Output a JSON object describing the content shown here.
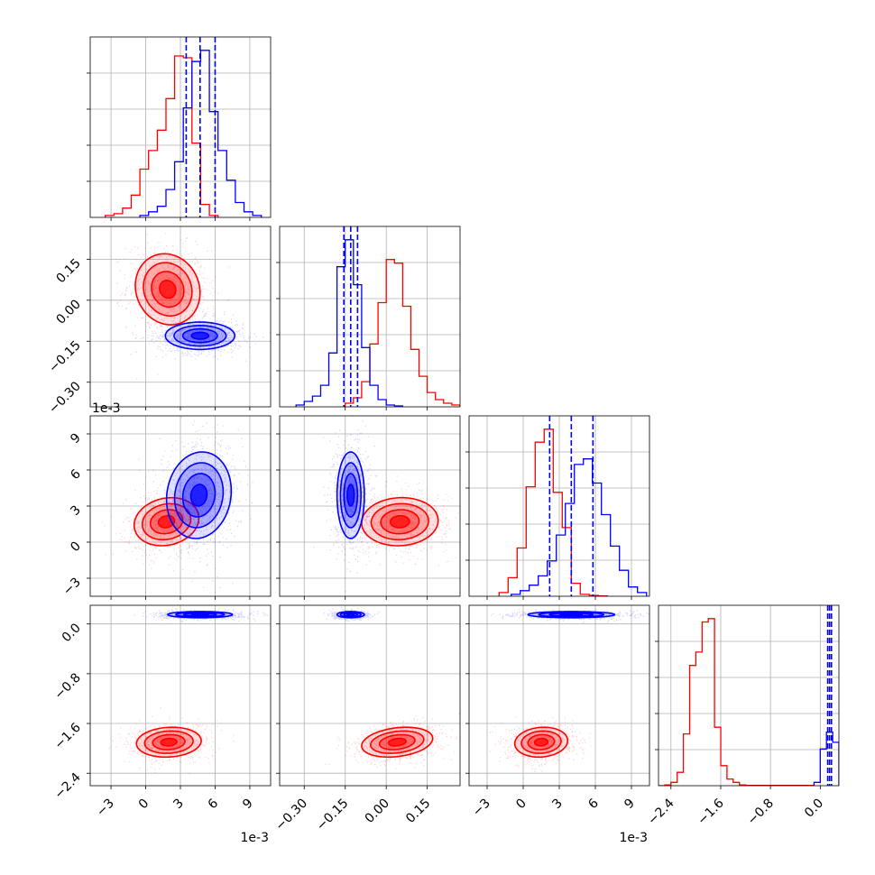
{
  "chart_data": {
    "type": "corner",
    "colors": {
      "red": "#ff0000",
      "blue": "#0000ff",
      "grid": "#b0b0b0"
    },
    "parameters": [
      {
        "range": [
          -4.8,
          10.8
        ],
        "ticks": [
          -3,
          0,
          3,
          6,
          9
        ],
        "tick_labels": [
          "−3",
          "0",
          "3",
          "6",
          "9"
        ],
        "offset_text": "1e-3"
      },
      {
        "range": [
          -0.39,
          0.27
        ],
        "ticks": [
          -0.3,
          -0.15,
          0.0,
          0.15
        ],
        "tick_labels": [
          "−0.30",
          "−0.15",
          "0.00",
          "0.15"
        ],
        "offset_text": ""
      },
      {
        "range": [
          -4.5,
          10.5
        ],
        "ticks": [
          -3,
          0,
          3,
          6,
          9
        ],
        "tick_labels": [
          "−3",
          "0",
          "3",
          "6",
          "9"
        ],
        "offset_text": "1e-3"
      },
      {
        "range": [
          -2.6,
          0.3
        ],
        "ticks": [
          -2.4,
          -1.6,
          -0.8,
          0.0
        ],
        "tick_labels": [
          "−2.4",
          "−1.6",
          "−0.8",
          "0.0"
        ],
        "offset_text": ""
      }
    ],
    "quantiles_blue": [
      [
        3.5,
        4.7,
        6.0
      ],
      [
        -0.155,
        -0.13,
        -0.105
      ],
      [
        2.2,
        4.0,
        5.8
      ],
      [
        0.12,
        0.15,
        0.18
      ]
    ],
    "histograms": [
      {
        "red": {
          "edges": [
            -3.5,
            -2.75,
            -2.0,
            -1.25,
            -0.5,
            0.25,
            1.0,
            1.75,
            2.5,
            3.25,
            4.0,
            4.75,
            5.5,
            6.25
          ],
          "counts": [
            0.01,
            0.02,
            0.05,
            0.12,
            0.26,
            0.36,
            0.47,
            0.64,
            0.87,
            0.86,
            0.4,
            0.07,
            0.01
          ]
        },
        "blue": {
          "edges": [
            -0.5,
            0.25,
            1.0,
            1.75,
            2.5,
            3.25,
            4.0,
            4.75,
            5.5,
            6.25,
            7.0,
            7.75,
            8.5,
            9.25,
            10.0
          ],
          "counts": [
            0.01,
            0.03,
            0.06,
            0.15,
            0.3,
            0.59,
            0.84,
            0.9,
            0.57,
            0.36,
            0.2,
            0.08,
            0.03,
            0.01
          ]
        }
      },
      {
        "red": {
          "edges": [
            -0.15,
            -0.12,
            -0.09,
            -0.06,
            -0.03,
            0.0,
            0.03,
            0.06,
            0.09,
            0.12,
            0.15,
            0.18,
            0.21,
            0.24,
            0.27
          ],
          "counts": [
            0.02,
            0.05,
            0.14,
            0.35,
            0.58,
            0.82,
            0.8,
            0.56,
            0.32,
            0.17,
            0.08,
            0.04,
            0.02,
            0.01
          ]
        },
        "blue": {
          "edges": [
            -0.33,
            -0.3,
            -0.27,
            -0.24,
            -0.21,
            -0.18,
            -0.15,
            -0.12,
            -0.09,
            -0.06,
            -0.03,
            0.0,
            0.03,
            0.06
          ],
          "counts": [
            0.01,
            0.03,
            0.06,
            0.12,
            0.3,
            0.78,
            0.93,
            0.68,
            0.33,
            0.12,
            0.04,
            0.01,
            0.005
          ]
        }
      },
      {
        "red": {
          "edges": [
            -2.0,
            -1.25,
            -0.5,
            0.25,
            1.0,
            1.75,
            2.5,
            3.25,
            4.0,
            4.75,
            5.5,
            6.25,
            7.0
          ],
          "counts": [
            0.02,
            0.1,
            0.26,
            0.59,
            0.83,
            0.9,
            0.56,
            0.37,
            0.07,
            0.01,
            0.005,
            0.002
          ]
        },
        "blue": {
          "edges": [
            -1.0,
            -0.25,
            0.5,
            1.25,
            2.0,
            2.75,
            3.5,
            4.25,
            5.0,
            5.75,
            6.5,
            7.25,
            8.0,
            8.75,
            9.5,
            10.25
          ],
          "counts": [
            0.01,
            0.03,
            0.06,
            0.11,
            0.19,
            0.33,
            0.5,
            0.71,
            0.74,
            0.61,
            0.44,
            0.27,
            0.14,
            0.05,
            0.02
          ]
        }
      },
      {
        "red": {
          "edges": [
            -2.6,
            -2.5,
            -2.4,
            -2.3,
            -2.2,
            -2.1,
            -2.0,
            -1.9,
            -1.8,
            -1.7,
            -1.6,
            -1.5,
            -1.4,
            -1.3,
            -1.2,
            -1.1,
            -1.0,
            -0.9,
            -0.8,
            -0.7,
            -0.6,
            -0.5,
            -0.4,
            -0.3,
            -0.2,
            -0.1
          ],
          "counts": [
            0.0,
            0.005,
            0.02,
            0.08,
            0.31,
            0.72,
            0.8,
            0.98,
            1.0,
            0.35,
            0.12,
            0.04,
            0.02,
            0.005,
            0.002,
            0.002,
            0.002,
            0.002,
            0.002,
            0.002,
            0.002,
            0.002,
            0.002,
            0.002,
            0.002
          ]
        },
        "blue": {
          "edges": [
            -0.1,
            0.0,
            0.1,
            0.2,
            0.3
          ],
          "counts": [
            0.02,
            0.22,
            0.32,
            0.26
          ]
        }
      }
    ],
    "contours": {
      "1_0": {
        "red": {
          "center": [
            1.9,
            0.04
          ],
          "sd": [
            1.4,
            0.065
          ],
          "rho": -0.1
        },
        "blue": {
          "center": [
            4.7,
            -0.13
          ],
          "sd": [
            1.5,
            0.025
          ],
          "rho": 0.0
        }
      },
      "2_0": {
        "red": {
          "center": [
            1.8,
            1.7
          ],
          "sd": [
            1.4,
            1.0
          ],
          "rho": 0.15
        },
        "blue": {
          "center": [
            4.6,
            3.9
          ],
          "sd": [
            1.4,
            1.8
          ],
          "rho": 0.1
        }
      },
      "2_1": {
        "red": {
          "center": [
            0.05,
            1.7
          ],
          "sd": [
            0.07,
            1.0
          ],
          "rho": 0.05
        },
        "blue": {
          "center": [
            -0.13,
            3.9
          ],
          "sd": [
            0.025,
            1.8
          ],
          "rho": 0.0
        }
      },
      "3_0": {
        "red": {
          "center": [
            2.0,
            -1.9
          ],
          "sd": [
            1.4,
            0.12
          ],
          "rho": 0.1
        },
        "blue": {
          "center": [
            4.7,
            0.15
          ],
          "sd": [
            1.4,
            0.025
          ],
          "rho": 0.0
        }
      },
      "3_1": {
        "red": {
          "center": [
            0.04,
            -1.9
          ],
          "sd": [
            0.065,
            0.12
          ],
          "rho": 0.25
        },
        "blue": {
          "center": [
            -0.13,
            0.15
          ],
          "sd": [
            0.025,
            0.025
          ],
          "rho": 0.0
        }
      },
      "3_2": {
        "red": {
          "center": [
            1.5,
            -1.9
          ],
          "sd": [
            1.1,
            0.12
          ],
          "rho": 0.1
        },
        "blue": {
          "center": [
            4.0,
            0.15
          ],
          "sd": [
            1.8,
            0.025
          ],
          "rho": 0.0
        }
      }
    },
    "contour_levels_sigma": [
      0.5,
      1.0,
      1.5,
      2.0
    ],
    "grid": true,
    "legend": null
  }
}
